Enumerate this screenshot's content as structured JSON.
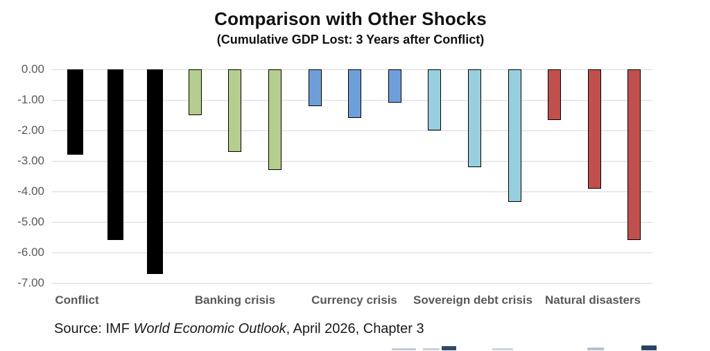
{
  "chart_data": {
    "type": "bar",
    "title": "Comparison with Other Shocks",
    "subtitle": "(Cumulative GDP Lost: 3 Years after Conflict)",
    "ylabel": "",
    "xlabel": "",
    "ylim": [
      -7,
      0
    ],
    "ytick_labels": [
      "0.00",
      "-1.00",
      "-2.00",
      "-3.00",
      "-4.00",
      "-5.00",
      "-6.00",
      "-7.00"
    ],
    "grid": "horizontal",
    "legend": "none",
    "groups": [
      {
        "label": "Conflict",
        "color": "#000000",
        "outline": false,
        "values": [
          -2.8,
          -5.6,
          -6.7
        ]
      },
      {
        "label": "Banking crisis",
        "color": "#b5cd8e",
        "outline": true,
        "values": [
          -1.5,
          -2.7,
          -3.3
        ]
      },
      {
        "label": "Currency crisis",
        "color": "#6f9fd8",
        "outline": true,
        "values": [
          -1.2,
          -1.6,
          -1.1
        ]
      },
      {
        "label": "Sovereign debt crisis",
        "color": "#97cfdf",
        "outline": true,
        "values": [
          -2.0,
          -3.2,
          -4.35
        ]
      },
      {
        "label": "Natural disasters",
        "color": "#c0504d",
        "outline": true,
        "values": [
          -1.65,
          -3.9,
          -5.6
        ]
      }
    ],
    "source": {
      "prefix": "Source: IMF ",
      "italic": "World Economic Outlook",
      "suffix": ", April 2026, Chapter 3"
    }
  },
  "colors": {
    "gridline": "#d9d9d9",
    "axis_text": "#595959",
    "title_text": "#111111"
  }
}
